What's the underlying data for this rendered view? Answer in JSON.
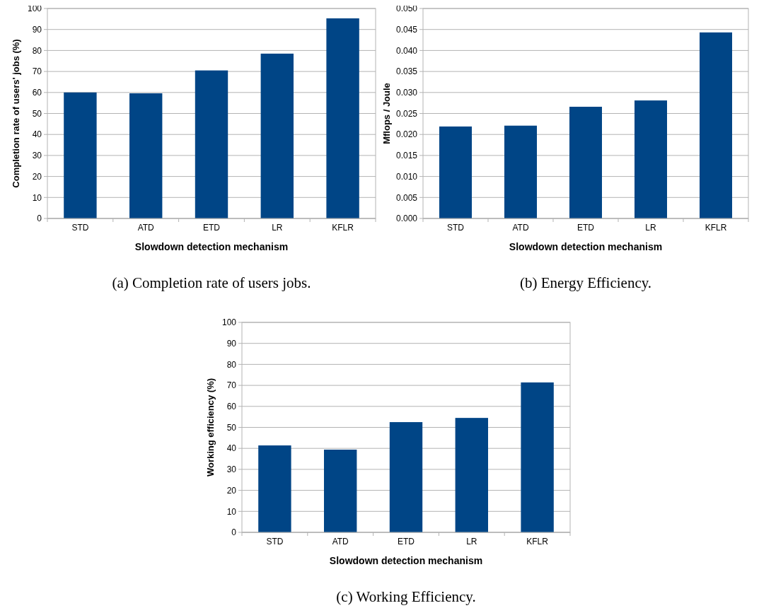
{
  "chart_data": [
    {
      "type": "bar",
      "title": "(a)  Completion rate of users jobs.",
      "xlabel": "Slowdown detection mechanism",
      "ylabel": "Completion rate of users' jobs (%)",
      "categories": [
        "STD",
        "ATD",
        "ETD",
        "LR",
        "KFLR"
      ],
      "values": [
        60,
        59.6,
        70.5,
        78.5,
        95.3
      ],
      "color": "#004586",
      "ylim": [
        0,
        100
      ],
      "yticks": [
        0,
        10,
        20,
        30,
        40,
        50,
        60,
        70,
        80,
        90,
        100
      ],
      "grid": "y"
    },
    {
      "type": "bar",
      "title": "(b)  Energy Efficiency.",
      "xlabel": "Slowdown detection mechanism",
      "ylabel": "Mflops / Joule",
      "categories": [
        "STD",
        "ATD",
        "ETD",
        "LR",
        "KFLR"
      ],
      "values": [
        0.0219,
        0.0221,
        0.0266,
        0.0281,
        0.0443
      ],
      "color": "#004586",
      "ylim": [
        0,
        0.05
      ],
      "yticks": [
        {
          "value": 0,
          "label": "0.000"
        },
        {
          "value": 0.005,
          "label": "0.005"
        },
        {
          "value": 0.01,
          "label": "0.010"
        },
        {
          "value": 0.015,
          "label": "0.015"
        },
        {
          "value": 0.02,
          "label": "0.020"
        },
        {
          "value": 0.025,
          "label": "0.025"
        },
        {
          "value": 0.03,
          "label": "0.030"
        },
        {
          "value": 0.035,
          "label": "0.035"
        },
        {
          "value": 0.04,
          "label": "0.040"
        },
        {
          "value": 0.045,
          "label": "0.045"
        },
        {
          "value": 0.05,
          "label": "0.050"
        }
      ],
      "grid": "y"
    },
    {
      "type": "bar",
      "title": "(c)  Working Efficiency.",
      "xlabel": "Slowdown detection mechanism",
      "ylabel": "Working efficiency (%)",
      "categories": [
        "STD",
        "ATD",
        "ETD",
        "LR",
        "KFLR"
      ],
      "values": [
        41.4,
        39.4,
        52.5,
        54.5,
        71.4
      ],
      "color": "#004586",
      "ylim": [
        0,
        100
      ],
      "yticks": [
        0,
        10,
        20,
        30,
        40,
        50,
        60,
        70,
        80,
        90,
        100
      ],
      "grid": "y"
    }
  ]
}
